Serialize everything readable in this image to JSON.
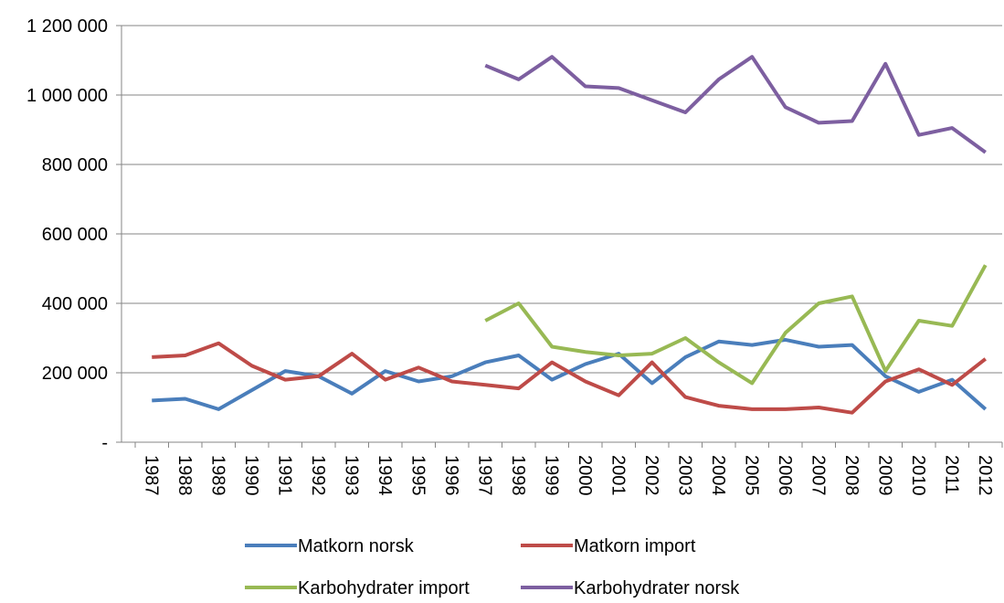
{
  "chart_data": {
    "type": "line",
    "categories": [
      "1987",
      "1988",
      "1989",
      "1990",
      "1991",
      "1992",
      "1993",
      "1994",
      "1995",
      "1996",
      "1997",
      "1998",
      "1999",
      "2000",
      "2001",
      "2002",
      "2003",
      "2004",
      "2005",
      "2006",
      "2007",
      "2008",
      "2009",
      "2010",
      "2011",
      "2012"
    ],
    "series": [
      {
        "name": "Matkorn norsk",
        "color": "#4a7ebb",
        "values": [
          120000,
          125000,
          95000,
          150000,
          205000,
          190000,
          140000,
          205000,
          175000,
          190000,
          230000,
          250000,
          180000,
          225000,
          255000,
          170000,
          245000,
          290000,
          280000,
          295000,
          275000,
          280000,
          190000,
          145000,
          180000,
          95000
        ]
      },
      {
        "name": "Matkorn import",
        "color": "#be4b48",
        "values": [
          245000,
          250000,
          285000,
          220000,
          180000,
          190000,
          255000,
          180000,
          215000,
          175000,
          165000,
          155000,
          230000,
          175000,
          135000,
          230000,
          130000,
          105000,
          95000,
          95000,
          100000,
          85000,
          175000,
          210000,
          165000,
          240000
        ]
      },
      {
        "name": "Karbohydrater import",
        "color": "#98b954",
        "values": [
          null,
          null,
          null,
          null,
          null,
          null,
          null,
          null,
          null,
          null,
          350000,
          400000,
          275000,
          260000,
          250000,
          255000,
          300000,
          230000,
          170000,
          315000,
          400000,
          420000,
          205000,
          350000,
          335000,
          510000
        ]
      },
      {
        "name": "Karbohydrater norsk",
        "color": "#7d5fa0",
        "values": [
          null,
          null,
          null,
          null,
          null,
          null,
          null,
          null,
          null,
          null,
          1085000,
          1045000,
          1110000,
          1025000,
          1020000,
          985000,
          950000,
          1045000,
          1110000,
          965000,
          920000,
          925000,
          1090000,
          885000,
          905000,
          835000
        ]
      }
    ],
    "ylim": [
      0,
      1200000
    ],
    "yticks": [
      {
        "value": 0,
        "label": "-"
      },
      {
        "value": 200000,
        "label": "200 000"
      },
      {
        "value": 400000,
        "label": "400 000"
      },
      {
        "value": 600000,
        "label": "600 000"
      },
      {
        "value": 800000,
        "label": "800 000"
      },
      {
        "value": 1000000,
        "label": "1 000 000"
      },
      {
        "value": 1200000,
        "label": "1 200 000"
      }
    ],
    "grid": true,
    "legend": "bottom"
  }
}
